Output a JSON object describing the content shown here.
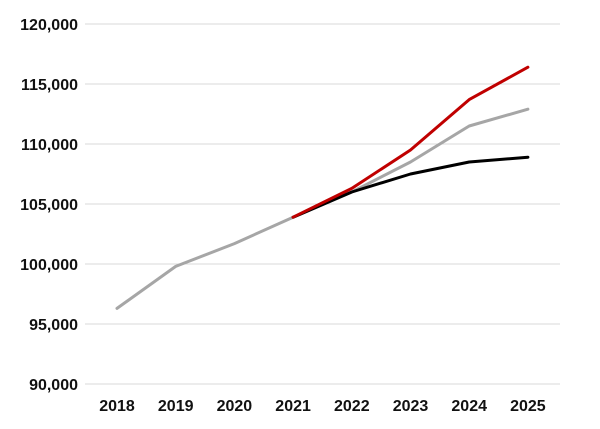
{
  "chart_data": {
    "type": "line",
    "title": "",
    "xlabel": "",
    "ylabel": "",
    "categories": [
      "2018",
      "2019",
      "2020",
      "2021",
      "2022",
      "2023",
      "2024",
      "2025"
    ],
    "ylim": [
      90000,
      120000
    ],
    "yticks": [
      90000,
      95000,
      100000,
      105000,
      110000,
      115000,
      120000
    ],
    "ytick_labels": [
      "90,000",
      "95,000",
      "100,000",
      "105,000",
      "110,000",
      "115,000",
      "120,000"
    ],
    "grid": "horizontal",
    "series": [
      {
        "color": "#a6a6a6",
        "values": [
          96300,
          99800,
          101700,
          103900,
          106000,
          108500,
          111500,
          112900
        ]
      },
      {
        "color": "#000000",
        "values": [
          null,
          null,
          null,
          103900,
          106000,
          107500,
          108500,
          108900
        ]
      },
      {
        "color": "#c00000",
        "values": [
          null,
          null,
          null,
          103900,
          106300,
          109500,
          113700,
          116400
        ]
      }
    ]
  }
}
